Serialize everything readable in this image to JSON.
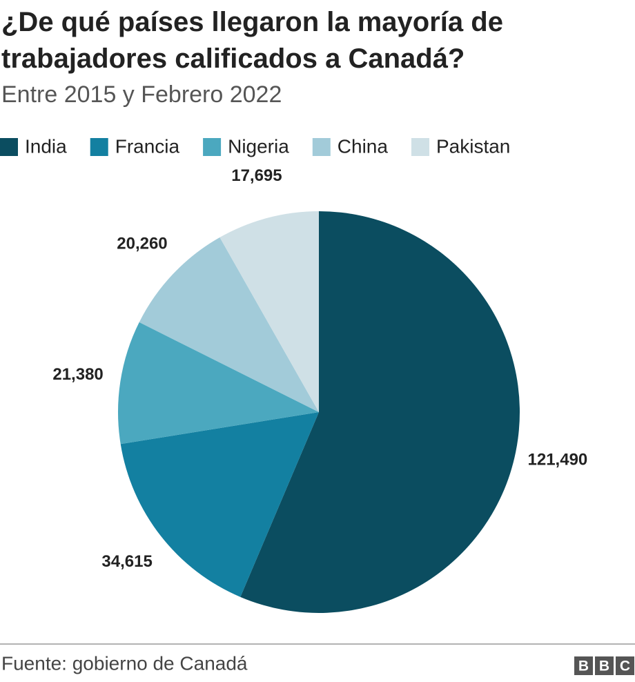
{
  "chart_data": {
    "type": "pie",
    "title": "¿De qué países llegaron la mayoría de trabajadores calificados a Canadá?",
    "subtitle": "Entre 2015 y Febrero 2022",
    "categories": [
      "India",
      "Francia",
      "Nigeria",
      "China",
      "Pakistan"
    ],
    "values": [
      121490,
      34615,
      21380,
      20260,
      17695
    ],
    "value_labels": [
      "121,490",
      "34,615",
      "21,380",
      "20,260",
      "17,695"
    ],
    "colors": [
      "#0b4d60",
      "#1380a1",
      "#4ba8bf",
      "#a2cbd9",
      "#cfe0e6"
    ],
    "legend": "top",
    "source": "Fuente: gobierno de Canadá",
    "logo": [
      "B",
      "B",
      "C"
    ]
  }
}
